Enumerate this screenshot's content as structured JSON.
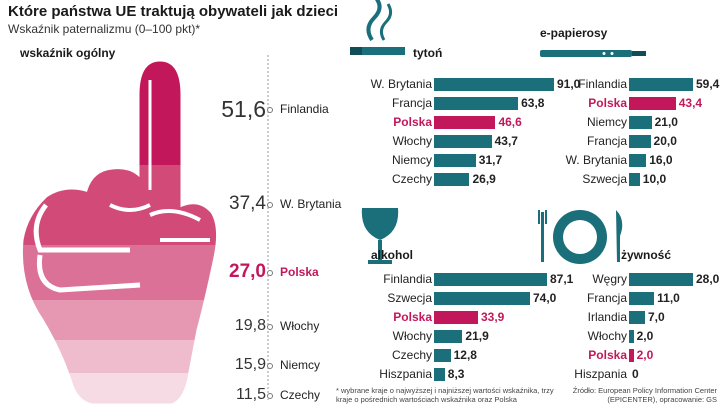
{
  "title": "Które państwa UE traktują obywateli jak dzieci",
  "subtitle": "Wskaźnik paternalizmu (0–100 pkt)*",
  "overall_label": "wskaźnik ogólny",
  "highlight_color": "#c2185b",
  "bar_color": "#1b6f7a",
  "chart_data": [
    {
      "type": "bar",
      "title": "wskaźnik ogólny",
      "categories": [
        "Finlandia",
        "W. Brytania",
        "Polska",
        "Włochy",
        "Niemcy",
        "Czechy"
      ],
      "values": [
        51.6,
        37.4,
        27.0,
        19.8,
        15.9,
        11.5
      ],
      "value_labels": [
        "51,6",
        "37,4",
        "27,0",
        "19,8",
        "15,9",
        "11,5"
      ],
      "highlight": "Polska"
    },
    {
      "type": "bar",
      "title": "tytoń",
      "icon": "cigarette-icon",
      "categories": [
        "W. Brytania",
        "Francja",
        "Polska",
        "Włochy",
        "Niemcy",
        "Czechy"
      ],
      "values": [
        91.0,
        63.8,
        46.6,
        43.7,
        31.7,
        26.9
      ],
      "value_labels": [
        "91,0",
        "63,8",
        "46,6",
        "43,7",
        "31,7",
        "26,9"
      ],
      "highlight": "Polska"
    },
    {
      "type": "bar",
      "title": "e-papierosy",
      "icon": "e-cigarette-icon",
      "categories": [
        "Finlandia",
        "Polska",
        "Niemcy",
        "Francja",
        "W. Brytania",
        "Szwecja"
      ],
      "values": [
        59.4,
        43.4,
        21.0,
        20.0,
        16.0,
        10.0
      ],
      "value_labels": [
        "59,4",
        "43,4",
        "21,0",
        "20,0",
        "16,0",
        "10,0"
      ],
      "highlight": "Polska"
    },
    {
      "type": "bar",
      "title": "alkohol",
      "icon": "wine-glass-icon",
      "categories": [
        "Finlandia",
        "Szwecja",
        "Polska",
        "Włochy",
        "Czechy",
        "Hiszpania"
      ],
      "values": [
        87.1,
        74.0,
        33.9,
        21.9,
        12.8,
        8.3
      ],
      "value_labels": [
        "87,1",
        "74,0",
        "33,9",
        "21,9",
        "12,8",
        "8,3"
      ],
      "highlight": "Polska"
    },
    {
      "type": "bar",
      "title": "żywność",
      "icon": "plate-cutlery-icon",
      "categories": [
        "Węgry",
        "Francja",
        "Irlandia",
        "Włochy",
        "Polska",
        "Hiszpania"
      ],
      "values": [
        28.0,
        11.0,
        7.0,
        2.0,
        2.0,
        0
      ],
      "value_labels": [
        "28,0",
        "11,0",
        "7,0",
        "2,0",
        "2,0",
        "0"
      ],
      "highlight": "Polska"
    }
  ],
  "footnote": "* wybrane kraje o najwyższej i najniższej wartości wskaźnika, trzy kraje o pośrednich wartościach wskaźnika oraz Polska",
  "source": "Źródło: European Policy Information Center (EPICENTER), opracowanie: GS"
}
